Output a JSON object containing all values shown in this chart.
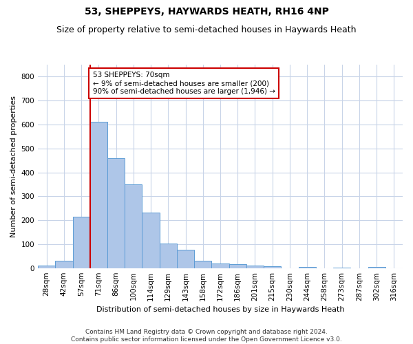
{
  "title": "53, SHEPPEYS, HAYWARDS HEATH, RH16 4NP",
  "subtitle": "Size of property relative to semi-detached houses in Haywards Heath",
  "xlabel": "Distribution of semi-detached houses by size in Haywards Heath",
  "ylabel": "Number of semi-detached properties",
  "footer_line1": "Contains HM Land Registry data © Crown copyright and database right 2024.",
  "footer_line2": "Contains public sector information licensed under the Open Government Licence v3.0.",
  "categories": [
    "28sqm",
    "42sqm",
    "57sqm",
    "71sqm",
    "86sqm",
    "100sqm",
    "114sqm",
    "129sqm",
    "143sqm",
    "158sqm",
    "172sqm",
    "186sqm",
    "201sqm",
    "215sqm",
    "230sqm",
    "244sqm",
    "258sqm",
    "273sqm",
    "287sqm",
    "302sqm",
    "316sqm"
  ],
  "values": [
    12,
    30,
    215,
    610,
    458,
    350,
    232,
    103,
    77,
    30,
    18,
    17,
    10,
    8,
    0,
    5,
    0,
    3,
    0,
    5,
    0
  ],
  "bar_color": "#aec6e8",
  "bar_edge_color": "#5b9bd5",
  "vline_x_index": 3,
  "vline_color": "#cc0000",
  "annotation_text": "53 SHEPPEYS: 70sqm\n← 9% of semi-detached houses are smaller (200)\n90% of semi-detached houses are larger (1,946) →",
  "annotation_box_color": "#ffffff",
  "annotation_box_edge_color": "#cc0000",
  "ylim": [
    0,
    850
  ],
  "yticks": [
    0,
    100,
    200,
    300,
    400,
    500,
    600,
    700,
    800
  ],
  "background_color": "#ffffff",
  "grid_color": "#c8d4e8",
  "title_fontsize": 10,
  "subtitle_fontsize": 9,
  "axis_label_fontsize": 8,
  "tick_fontsize": 7.5,
  "annotation_fontsize": 7.5,
  "footer_fontsize": 6.5
}
